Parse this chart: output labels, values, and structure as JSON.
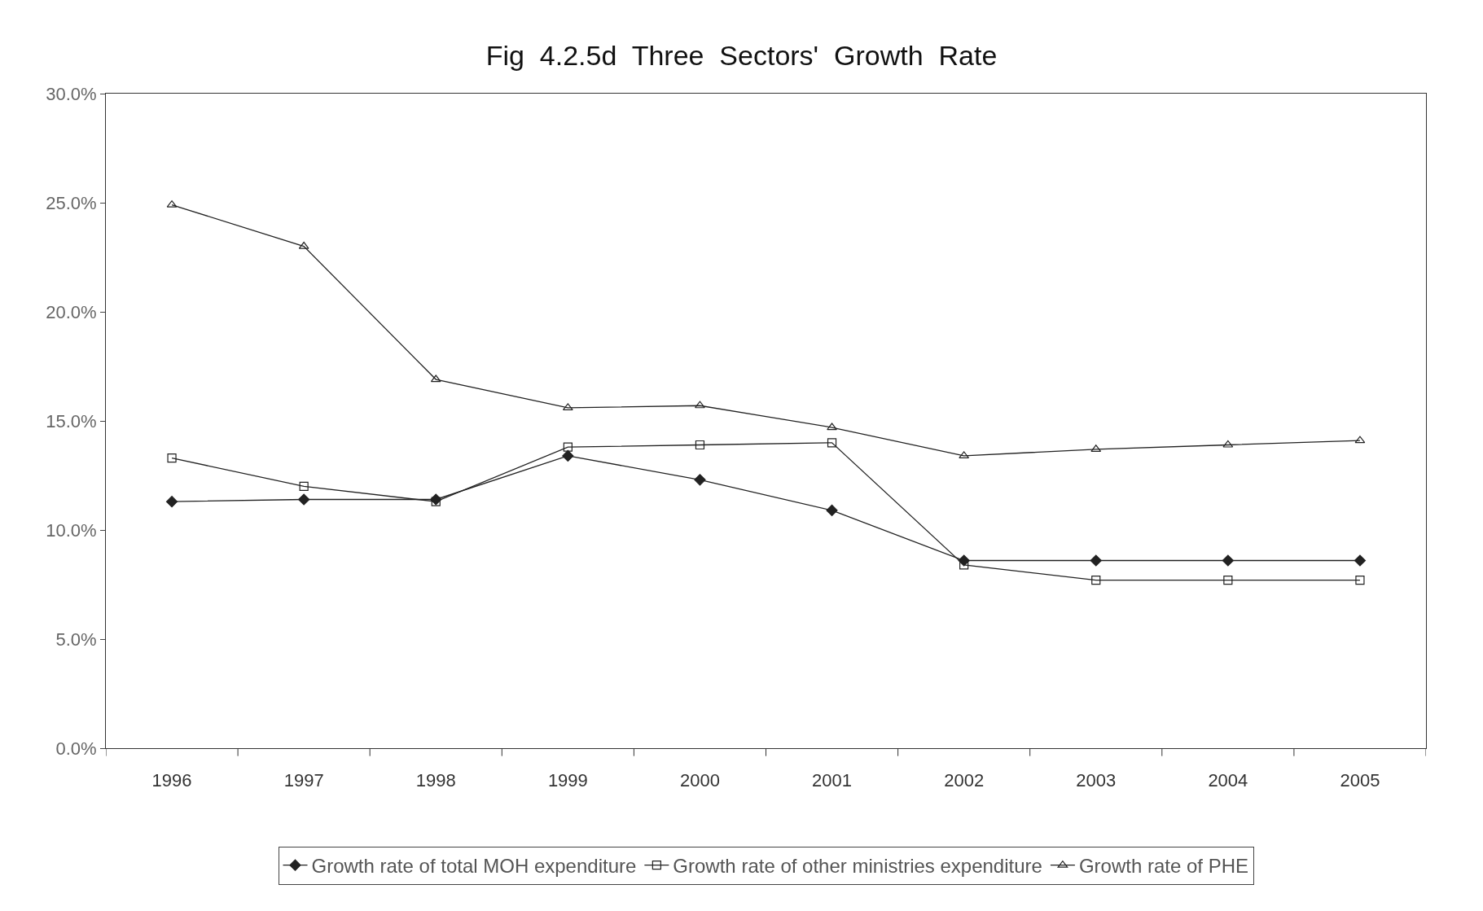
{
  "chart_data": {
    "type": "line",
    "title": "Fig  4.2.5d  Three  Sectors'  Growth  Rate",
    "categories": [
      "1996",
      "1997",
      "1998",
      "1999",
      "2000",
      "2001",
      "2002",
      "2003",
      "2004",
      "2005"
    ],
    "series": [
      {
        "name": "Growth rate of total MOH expenditure",
        "color": "#222222",
        "marker": "diamond",
        "values": [
          11.3,
          11.4,
          11.4,
          13.4,
          12.3,
          10.9,
          8.6,
          8.6,
          8.6,
          8.6
        ]
      },
      {
        "name": "Growth rate of other ministries expenditure",
        "color": "#222222",
        "marker": "square",
        "values": [
          13.3,
          12.0,
          11.3,
          13.8,
          13.9,
          14.0,
          8.4,
          7.7,
          7.7,
          7.7
        ]
      },
      {
        "name": "Growth rate of PHE",
        "color": "#222222",
        "marker": "triangle",
        "values": [
          24.9,
          23.0,
          16.9,
          15.6,
          15.7,
          14.7,
          13.4,
          13.7,
          13.9,
          14.1
        ]
      }
    ],
    "ylim": [
      0,
      30
    ],
    "yticks": [
      {
        "value": 0,
        "label": "0.0%"
      },
      {
        "value": 5,
        "label": "5.0%"
      },
      {
        "value": 10,
        "label": "10.0%"
      },
      {
        "value": 15,
        "label": "15.0%"
      },
      {
        "value": 20,
        "label": "20.0%"
      },
      {
        "value": 25,
        "label": "25.0%"
      },
      {
        "value": 30,
        "label": "30.0%"
      }
    ],
    "legend": "bottom",
    "line_style": "solid"
  }
}
